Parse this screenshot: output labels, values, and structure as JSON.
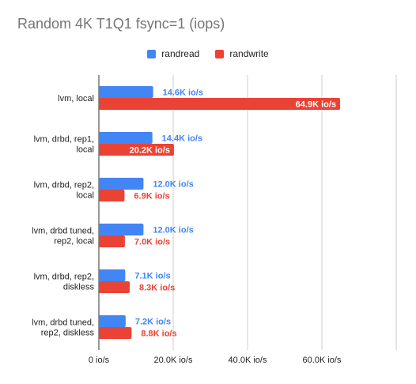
{
  "chart_data": {
    "type": "bar",
    "orientation": "horizontal",
    "title": "Random 4K T1Q1 fsync=1 (iops)",
    "categories": [
      [
        "lvm, local"
      ],
      [
        "lvm, drbd, rep1,",
        "local"
      ],
      [
        "lvm, drbd, rep2,",
        "local"
      ],
      [
        "lvm, drbd tuned,",
        "rep2, local"
      ],
      [
        "lvm, drbd, rep2,",
        "diskless"
      ],
      [
        "lvm, drbd tuned,",
        "rep2, diskless"
      ]
    ],
    "series": [
      {
        "name": "randread",
        "color": "#4285f4",
        "values": [
          14600,
          14400,
          12000,
          12000,
          7100,
          7200
        ],
        "labels": [
          "14.6K io/s",
          "14.4K io/s",
          "12.0K io/s",
          "12.0K io/s",
          "7.1K io/s",
          "7.2K io/s"
        ]
      },
      {
        "name": "randwrite",
        "color": "#ea4335",
        "values": [
          64900,
          20200,
          6900,
          7000,
          8300,
          8800
        ],
        "labels": [
          "64.9K io/s",
          "20.2K io/s",
          "6.9K io/s",
          "7.0K io/s",
          "8.3K io/s",
          "8.8K io/s"
        ]
      }
    ],
    "xlim": [
      0,
      80000
    ],
    "xticks": [
      0,
      20000,
      40000,
      60000,
      80000
    ],
    "xtick_labels": [
      "0 io/s",
      "20.0K io/s",
      "40.0K io/s",
      "60.0K io/s",
      ""
    ],
    "grid": true,
    "legend_position": "top"
  }
}
